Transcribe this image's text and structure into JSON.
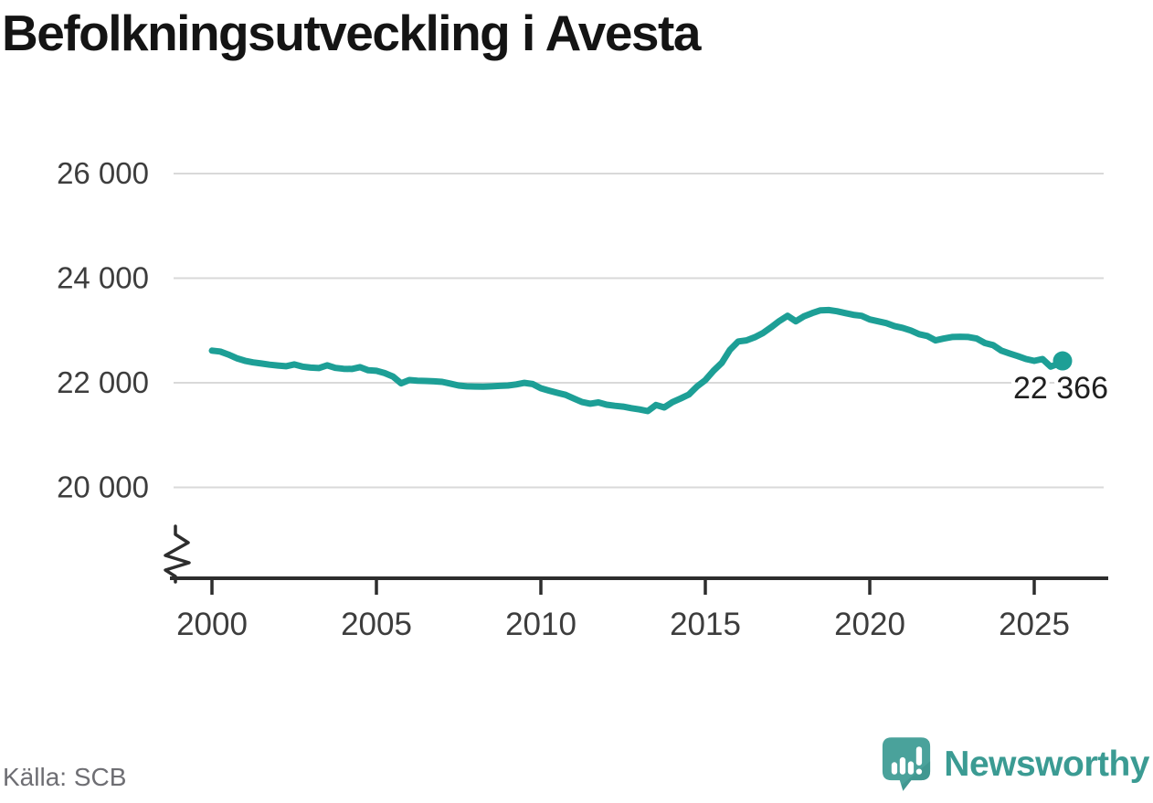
{
  "header": {
    "title": "Befolkningsutveckling i Avesta"
  },
  "footer": {
    "source": "Källa: SCB",
    "brand": "Newsworthy"
  },
  "colors": {
    "line": "#1d9f96",
    "grid": "#d9d9d9",
    "axis": "#2d2d2d",
    "tick_text": "#3d3d3d",
    "title_text": "#141414",
    "source_text": "#6e6e73",
    "brand_text": "#3b9b93",
    "logo_fill": "#4aa29b",
    "logo_shadow": "#3a8f89",
    "end_label_text": "#1f1f1f",
    "background": "#ffffff"
  },
  "chart_data": {
    "type": "line",
    "title": "Befolkningsutveckling i Avesta",
    "xlabel": "",
    "ylabel": "",
    "grid": "horizontal",
    "legend": "none",
    "axis_break": true,
    "x_start": 2000.0,
    "x_step": 0.25,
    "xlim": [
      2000,
      2026.3
    ],
    "ylim": [
      19600,
      26500
    ],
    "x_ticks": [
      "2000",
      "2005",
      "2010",
      "2015",
      "2020",
      "2025"
    ],
    "y_ticks": [
      {
        "value": 20000,
        "label": "20 000"
      },
      {
        "value": 22000,
        "label": "22 000"
      },
      {
        "value": 24000,
        "label": "24 000"
      },
      {
        "value": 26000,
        "label": "26 000"
      }
    ],
    "end_label": "22 366",
    "end_value": 22366,
    "series": [
      {
        "name": "Befolkning i Avesta",
        "values": [
          22614,
          22598,
          22540,
          22470,
          22421,
          22390,
          22368,
          22345,
          22330,
          22316,
          22351,
          22310,
          22290,
          22281,
          22333,
          22285,
          22268,
          22263,
          22298,
          22240,
          22228,
          22185,
          22120,
          21990,
          22053,
          22040,
          22035,
          22028,
          22018,
          21985,
          21947,
          21932,
          21928,
          21925,
          21932,
          21940,
          21947,
          21968,
          21998,
          21975,
          21895,
          21850,
          21807,
          21770,
          21700,
          21632,
          21600,
          21625,
          21580,
          21560,
          21544,
          21515,
          21490,
          21458,
          21575,
          21528,
          21630,
          21700,
          21775,
          21930,
          22050,
          22230,
          22380,
          22630,
          22790,
          22810,
          22870,
          22950,
          23060,
          23180,
          23280,
          23175,
          23270,
          23333,
          23385,
          23390,
          23368,
          23333,
          23300,
          23280,
          23210,
          23175,
          23140,
          23085,
          23050,
          23000,
          22930,
          22895,
          22810,
          22845,
          22875,
          22880,
          22875,
          22845,
          22760,
          22720,
          22615,
          22560,
          22510,
          22455,
          22420,
          22455,
          22310,
          22366
        ]
      }
    ]
  }
}
